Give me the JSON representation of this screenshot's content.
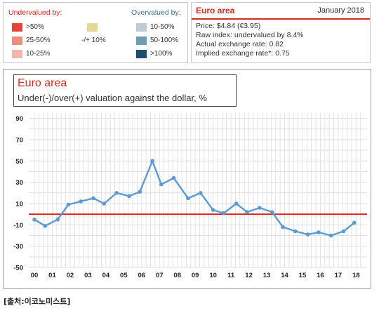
{
  "legend": {
    "undervalued_heading": "Undervalued by:",
    "overvalued_heading": "Overvalued by:",
    "under_items": [
      {
        "label": ">50%",
        "color": "#e8433a"
      },
      {
        "label": "25-50%",
        "color": "#ee8c7d"
      },
      {
        "label": "10-25%",
        "color": "#f4b6a8"
      }
    ],
    "neutral_item": {
      "label": "-/+ 10%",
      "color": "#e6d996"
    },
    "over_items": [
      {
        "label": "10-50%",
        "color": "#bccdd9"
      },
      {
        "label": "50-100%",
        "color": "#6d9eb0"
      },
      {
        "label": ">100%",
        "color": "#1d4e6e"
      }
    ]
  },
  "info": {
    "region": "Euro area",
    "date": "January 2018",
    "price": "Price: $4.84 (€3.95)",
    "raw_index": "Raw index: undervalued by 8.4%",
    "actual_rate": "Actual exchange rate: 0.82",
    "implied_rate": "Implied exchange rate*: 0.75"
  },
  "chart_data": {
    "type": "line",
    "title": "Euro area",
    "subtitle": "Under(-)/over(+) valuation against the dollar, %",
    "y_range": [
      -50,
      95
    ],
    "y_ticks": [
      90,
      70,
      50,
      30,
      10,
      -10,
      -30,
      -50
    ],
    "y_tick_labels": [
      "90",
      "70",
      "50",
      "30",
      "10",
      "-10",
      "-30",
      "-50"
    ],
    "x_range": [
      0,
      18.3
    ],
    "x_ticks": [
      0,
      1,
      2,
      3,
      4,
      5,
      6,
      7,
      8,
      9,
      10,
      11,
      12,
      13,
      14,
      15,
      16,
      17,
      18
    ],
    "x_tick_labels": [
      "00",
      "01",
      "02",
      "03",
      "04",
      "05",
      "06",
      "07",
      "08",
      "09",
      "10",
      "11",
      "12",
      "13",
      "14",
      "15",
      "16",
      "17",
      "18"
    ],
    "reference_line": {
      "y": 0,
      "color": "#d9261c"
    },
    "grid": true,
    "series": [
      {
        "color": "#5b9bd5",
        "points": [
          {
            "x": 0.0,
            "y": -5
          },
          {
            "x": 0.6,
            "y": -11
          },
          {
            "x": 1.3,
            "y": -5
          },
          {
            "x": 1.9,
            "y": 9
          },
          {
            "x": 2.6,
            "y": 12
          },
          {
            "x": 3.3,
            "y": 15
          },
          {
            "x": 3.9,
            "y": 10
          },
          {
            "x": 4.6,
            "y": 20
          },
          {
            "x": 5.3,
            "y": 17
          },
          {
            "x": 5.9,
            "y": 21
          },
          {
            "x": 6.6,
            "y": 50
          },
          {
            "x": 7.1,
            "y": 28
          },
          {
            "x": 7.8,
            "y": 34
          },
          {
            "x": 8.6,
            "y": 15
          },
          {
            "x": 9.3,
            "y": 20
          },
          {
            "x": 10.0,
            "y": 4
          },
          {
            "x": 10.6,
            "y": 1
          },
          {
            "x": 11.3,
            "y": 10
          },
          {
            "x": 11.9,
            "y": 2
          },
          {
            "x": 12.6,
            "y": 6
          },
          {
            "x": 13.3,
            "y": 2
          },
          {
            "x": 13.9,
            "y": -12
          },
          {
            "x": 14.6,
            "y": -16
          },
          {
            "x": 15.3,
            "y": -19
          },
          {
            "x": 15.9,
            "y": -17
          },
          {
            "x": 16.6,
            "y": -20
          },
          {
            "x": 17.3,
            "y": -16
          },
          {
            "x": 17.9,
            "y": -8
          }
        ]
      }
    ]
  },
  "source": "[출처:이코노미스트]"
}
